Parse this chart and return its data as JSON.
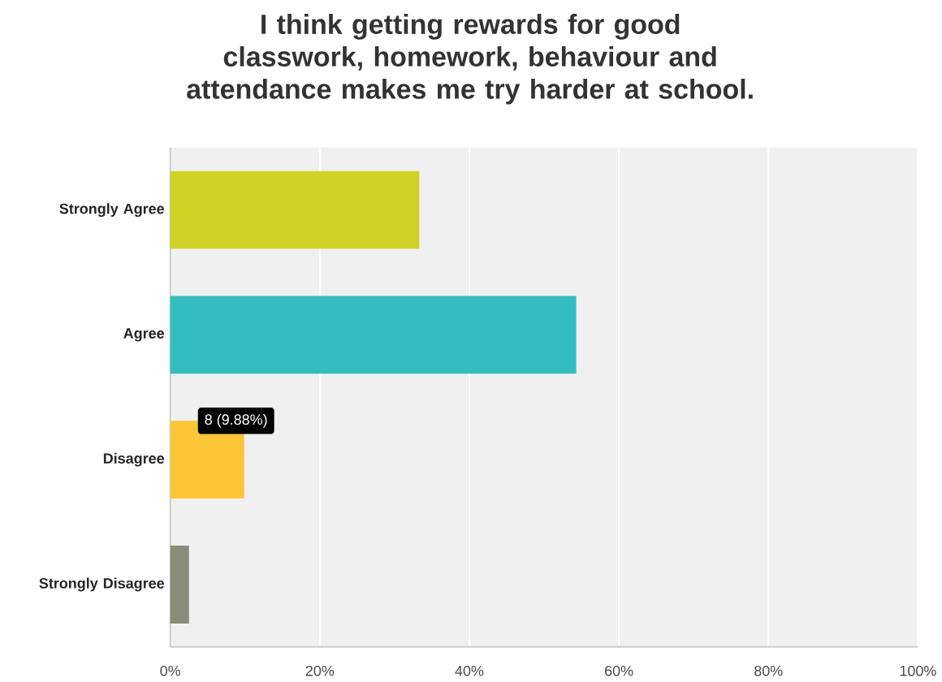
{
  "chart_data": {
    "type": "bar",
    "orientation": "horizontal",
    "title": "I think getting rewards for good classwork, homework, behaviour and attendance makes me try harder at school.",
    "categories": [
      "Strongly Agree",
      "Agree",
      "Disagree",
      "Strongly Disagree"
    ],
    "values": [
      33.3,
      54.3,
      9.88,
      2.5
    ],
    "colors": [
      "#cfd327",
      "#33bdbf",
      "#fec537",
      "#898b7b"
    ],
    "xlim": [
      0,
      100
    ],
    "xticks": [
      {
        "value": 0,
        "label": "0%"
      },
      {
        "value": 20,
        "label": "20%"
      },
      {
        "value": 40,
        "label": "40%"
      },
      {
        "value": 60,
        "label": "60%"
      },
      {
        "value": 80,
        "label": "80%"
      },
      {
        "value": 100,
        "label": "100%"
      }
    ],
    "grid": "x",
    "annotations": [
      {
        "text": "8 (9.88%)",
        "x": 9.88,
        "y": "Disagree"
      }
    ]
  }
}
